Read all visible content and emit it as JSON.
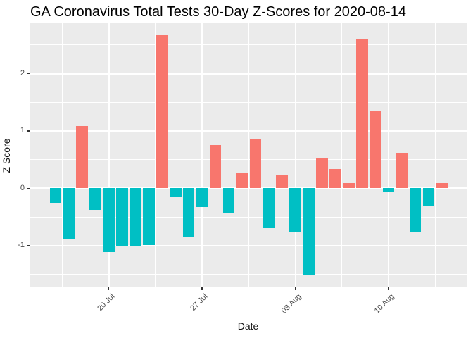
{
  "chart_data": {
    "type": "bar",
    "title": "GA Coronavirus Total Tests 30-Day Z-Scores for 2020-08-14",
    "xlabel": "Date",
    "ylabel": "Z Score",
    "x": [
      "2020-07-16",
      "2020-07-17",
      "2020-07-18",
      "2020-07-19",
      "2020-07-20",
      "2020-07-21",
      "2020-07-22",
      "2020-07-23",
      "2020-07-24",
      "2020-07-25",
      "2020-07-26",
      "2020-07-27",
      "2020-07-28",
      "2020-07-29",
      "2020-07-30",
      "2020-07-31",
      "2020-08-01",
      "2020-08-02",
      "2020-08-03",
      "2020-08-04",
      "2020-08-05",
      "2020-08-06",
      "2020-08-07",
      "2020-08-08",
      "2020-08-09",
      "2020-08-10",
      "2020-08-11",
      "2020-08-12",
      "2020-08-13",
      "2020-08-14"
    ],
    "values": [
      -0.25,
      -0.89,
      1.09,
      -0.38,
      -1.11,
      -1.01,
      -1.0,
      -0.99,
      2.68,
      -0.16,
      -0.84,
      -0.33,
      0.76,
      -0.43,
      0.27,
      0.86,
      -0.7,
      0.24,
      -0.75,
      -1.5,
      0.52,
      0.34,
      0.09,
      2.61,
      1.36,
      -0.06,
      0.62,
      -0.77,
      -0.3,
      0.09
    ],
    "positive_color": "#F8766D",
    "negative_color": "#00BFC4",
    "panel_background": "#EBEBEB",
    "grid_color": "#FFFFFF",
    "axis_text_color": "#4D4D4D",
    "tick_color": "#333333",
    "ylim": [
      -1.73,
      2.89
    ],
    "yticks": [
      2,
      1,
      0,
      -1
    ],
    "yticks_minor": [
      2.5,
      1.5,
      0.5,
      -0.5,
      -1.5
    ],
    "xticks": [
      {
        "index": 4,
        "label": "20 Jul"
      },
      {
        "index": 11,
        "label": "27 Jul"
      },
      {
        "index": 18,
        "label": "03 Aug"
      },
      {
        "index": 25,
        "label": "10 Aug"
      }
    ],
    "xticks_minor_indices": [
      0.5,
      7.5,
      14.5,
      21.5,
      28.5
    ],
    "legend_position": "none",
    "grid": true
  }
}
